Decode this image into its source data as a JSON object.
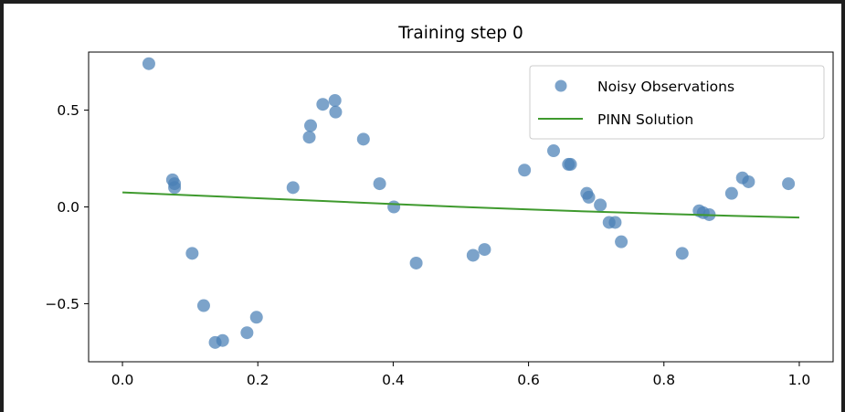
{
  "chart_data": {
    "type": "scatter",
    "title": "Training step 0",
    "xlabel": "",
    "ylabel": "",
    "xlim": [
      -0.05,
      1.05
    ],
    "ylim": [
      -0.8,
      0.8
    ],
    "x_ticks": [
      0.0,
      0.2,
      0.4,
      0.6,
      0.8,
      1.0
    ],
    "x_tick_labels": [
      "0.0",
      "0.2",
      "0.4",
      "0.6",
      "0.8",
      "1.0"
    ],
    "y_ticks": [
      0.5,
      0.0,
      -0.5
    ],
    "y_tick_labels": [
      "0.5",
      "0.0",
      "−0.5"
    ],
    "grid": false,
    "legend_position": "top-right",
    "colors": {
      "observations": "#4a7fb5",
      "pinn": "#3f9a2e"
    },
    "series": [
      {
        "name": "Noisy Observations",
        "kind": "scatter",
        "points": [
          [
            0.039,
            0.74
          ],
          [
            0.074,
            0.14
          ],
          [
            0.077,
            0.12
          ],
          [
            0.077,
            0.1
          ],
          [
            0.103,
            -0.24
          ],
          [
            0.12,
            -0.51
          ],
          [
            0.137,
            -0.7
          ],
          [
            0.148,
            -0.69
          ],
          [
            0.184,
            -0.65
          ],
          [
            0.198,
            -0.57
          ],
          [
            0.252,
            0.1
          ],
          [
            0.276,
            0.36
          ],
          [
            0.278,
            0.42
          ],
          [
            0.296,
            0.53
          ],
          [
            0.314,
            0.55
          ],
          [
            0.315,
            0.49
          ],
          [
            0.356,
            0.35
          ],
          [
            0.38,
            0.12
          ],
          [
            0.401,
            0.0
          ],
          [
            0.434,
            -0.29
          ],
          [
            0.518,
            -0.25
          ],
          [
            0.535,
            -0.22
          ],
          [
            0.594,
            0.19
          ],
          [
            0.637,
            0.29
          ],
          [
            0.659,
            0.22
          ],
          [
            0.662,
            0.22
          ],
          [
            0.686,
            0.07
          ],
          [
            0.689,
            0.05
          ],
          [
            0.706,
            0.01
          ],
          [
            0.719,
            -0.08
          ],
          [
            0.728,
            -0.08
          ],
          [
            0.737,
            -0.18
          ],
          [
            0.827,
            -0.24
          ],
          [
            0.852,
            -0.02
          ],
          [
            0.858,
            -0.03
          ],
          [
            0.867,
            -0.04
          ],
          [
            0.9,
            0.07
          ],
          [
            0.916,
            0.15
          ],
          [
            0.925,
            0.13
          ],
          [
            0.984,
            0.12
          ]
        ]
      },
      {
        "name": "PINN Solution",
        "kind": "line",
        "x": [
          0.0,
          0.1,
          0.2,
          0.3,
          0.4,
          0.5,
          0.6,
          0.7,
          0.8,
          0.9,
          1.0
        ],
        "y": [
          0.075,
          0.06,
          0.045,
          0.03,
          0.015,
          0.0,
          -0.013,
          -0.025,
          -0.036,
          -0.046,
          -0.055
        ]
      }
    ]
  }
}
